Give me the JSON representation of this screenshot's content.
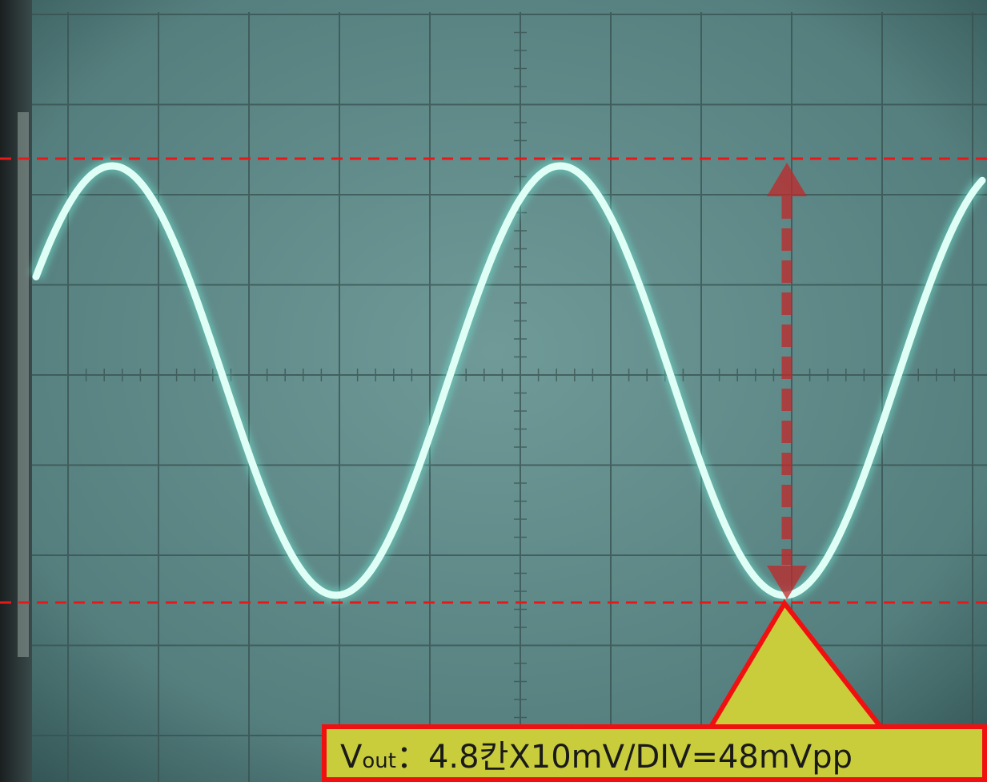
{
  "annotation": {
    "label": {
      "symbol": "V",
      "subscript": "out",
      "rest": "：4.8칸X10mV/DIV=48mVpp"
    }
  }
}
